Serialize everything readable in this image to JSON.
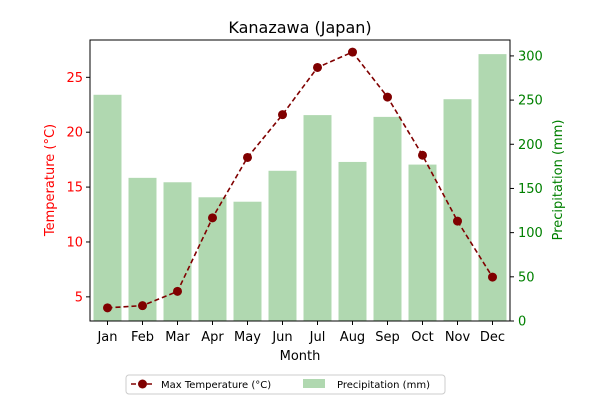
{
  "chart_data": {
    "type": "bar+line",
    "title": "Kanazawa (Japan)",
    "xlabel": "Month",
    "categories": [
      "Jan",
      "Feb",
      "Mar",
      "Apr",
      "May",
      "Jun",
      "Jul",
      "Aug",
      "Sep",
      "Oct",
      "Nov",
      "Dec"
    ],
    "left_axis": {
      "label": "Temperature (°C)",
      "color": "#ff0000",
      "ylim": [
        2.8,
        28.4
      ],
      "ticks": [
        5,
        10,
        15,
        20,
        25
      ]
    },
    "right_axis": {
      "label": "Precipitation (mm)",
      "color": "#008000",
      "ylim": [
        0,
        318
      ],
      "ticks": [
        0,
        50,
        100,
        150,
        200,
        250,
        300
      ]
    },
    "series": [
      {
        "name": "Max Temperature (°C)",
        "kind": "line",
        "axis": "left",
        "color": "#800000",
        "line_style": "dashed",
        "marker": "circle",
        "values": [
          4.0,
          4.2,
          5.5,
          12.2,
          17.7,
          21.6,
          25.9,
          27.3,
          23.2,
          17.9,
          11.9,
          6.8
        ]
      },
      {
        "name": "Precipitation (mm)",
        "kind": "bar",
        "axis": "right",
        "color": "#b0d8b0",
        "values": [
          256,
          162,
          157,
          140,
          135,
          170,
          233,
          180,
          231,
          177,
          251,
          302
        ]
      }
    ],
    "legend_position": "bottom-center",
    "grid": false
  }
}
